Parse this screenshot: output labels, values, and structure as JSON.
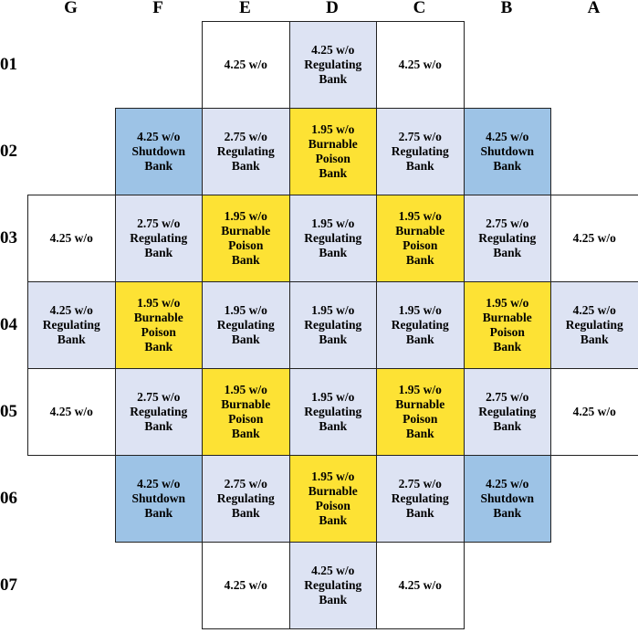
{
  "colors": {
    "white": "#ffffff",
    "regulating": "#dde3f3",
    "burnable": "#fde234",
    "shutdown": "#9dc3e6",
    "border": "#222222"
  },
  "columns": [
    "G",
    "F",
    "E",
    "D",
    "C",
    "B",
    "A"
  ],
  "rows": [
    "01",
    "02",
    "03",
    "04",
    "05",
    "06",
    "07"
  ],
  "grid": [
    [
      null,
      null,
      {
        "text": "4.25 w/o",
        "type": "white"
      },
      {
        "text": "4.25 w/o\nRegulating\nBank",
        "type": "regulating"
      },
      {
        "text": "4.25 w/o",
        "type": "white"
      },
      null,
      null
    ],
    [
      null,
      {
        "text": "4.25 w/o\nShutdown\nBank",
        "type": "shutdown"
      },
      {
        "text": "2.75 w/o\nRegulating\nBank",
        "type": "regulating"
      },
      {
        "text": "1.95 w/o\nBurnable\nPoison\nBank",
        "type": "burnable"
      },
      {
        "text": "2.75 w/o\nRegulating\nBank",
        "type": "regulating"
      },
      {
        "text": "4.25 w/o\nShutdown\nBank",
        "type": "shutdown"
      },
      null
    ],
    [
      {
        "text": "4.25 w/o",
        "type": "white"
      },
      {
        "text": "2.75 w/o\nRegulating\nBank",
        "type": "regulating"
      },
      {
        "text": "1.95 w/o\nBurnable\nPoison\nBank",
        "type": "burnable"
      },
      {
        "text": "1.95 w/o\nRegulating\nBank",
        "type": "regulating"
      },
      {
        "text": "1.95 w/o\nBurnable\nPoison\nBank",
        "type": "burnable"
      },
      {
        "text": "2.75 w/o\nRegulating\nBank",
        "type": "regulating"
      },
      {
        "text": "4.25 w/o",
        "type": "white"
      }
    ],
    [
      {
        "text": "4.25 w/o\nRegulating\nBank",
        "type": "regulating"
      },
      {
        "text": "1.95 w/o\nBurnable\nPoison\nBank",
        "type": "burnable"
      },
      {
        "text": "1.95 w/o\nRegulating\nBank",
        "type": "regulating"
      },
      {
        "text": "1.95 w/o\nRegulating\nBank",
        "type": "regulating"
      },
      {
        "text": "1.95 w/o\nRegulating\nBank",
        "type": "regulating"
      },
      {
        "text": "1.95 w/o\nBurnable\nPoison\nBank",
        "type": "burnable"
      },
      {
        "text": "4.25 w/o\nRegulating\nBank",
        "type": "regulating"
      }
    ],
    [
      {
        "text": "4.25 w/o",
        "type": "white"
      },
      {
        "text": "2.75 w/o\nRegulating\nBank",
        "type": "regulating"
      },
      {
        "text": "1.95 w/o\nBurnable\nPoison\nBank",
        "type": "burnable"
      },
      {
        "text": "1.95 w/o\nRegulating\nBank",
        "type": "regulating"
      },
      {
        "text": "1.95 w/o\nBurnable\nPoison\nBank",
        "type": "burnable"
      },
      {
        "text": "2.75 w/o\nRegulating\nBank",
        "type": "regulating"
      },
      {
        "text": "4.25 w/o",
        "type": "white"
      }
    ],
    [
      null,
      {
        "text": "4.25 w/o\nShutdown\nBank",
        "type": "shutdown"
      },
      {
        "text": "2.75 w/o\nRegulating\nBank",
        "type": "regulating"
      },
      {
        "text": "1.95 w/o\nBurnable\nPoison\nBank",
        "type": "burnable"
      },
      {
        "text": "2.75 w/o\nRegulating\nBank",
        "type": "regulating"
      },
      {
        "text": "4.25 w/o\nShutdown\nBank",
        "type": "shutdown"
      },
      null
    ],
    [
      null,
      null,
      {
        "text": "4.25 w/o",
        "type": "white"
      },
      {
        "text": "4.25 w/o\nRegulating\nBank",
        "type": "regulating"
      },
      {
        "text": "4.25 w/o",
        "type": "white"
      },
      null,
      null
    ]
  ]
}
